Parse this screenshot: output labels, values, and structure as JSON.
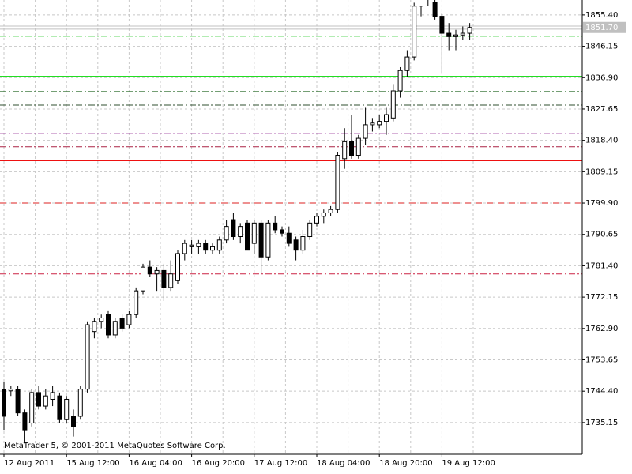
{
  "chart_data": {
    "type": "candlestick",
    "watermark": "MetaTrader 5, © 2001-2011 MetaQuotes Software Corp.",
    "categories": [
      "12 Aug 2011",
      null,
      null,
      null,
      null,
      null,
      null,
      null,
      null,
      "15 Aug 12:00",
      null,
      null,
      null,
      null,
      null,
      null,
      null,
      null,
      "16 Aug 04:00",
      null,
      null,
      null,
      null,
      null,
      null,
      null,
      null,
      "16 Aug 20:00",
      null,
      null,
      null,
      null,
      null,
      null,
      null,
      null,
      "17 Aug 12:00",
      null,
      null,
      null,
      null,
      null,
      null,
      null,
      null,
      "18 Aug 04:00",
      null,
      null,
      null,
      null,
      null,
      null,
      null,
      null,
      "18 Aug 20:00",
      null,
      null,
      null,
      null,
      null,
      null,
      null,
      null,
      "19 Aug 12:00",
      null,
      null,
      null,
      null
    ],
    "open": [
      1745,
      1744.5,
      1745,
      1738,
      1735,
      1744,
      1740,
      1742,
      1743,
      1736,
      1737,
      1737,
      1745,
      1762,
      1765,
      1767,
      1761,
      1766,
      1764,
      1767,
      1774,
      1781,
      1779,
      1780,
      1775,
      1777,
      1785,
      1787,
      1787,
      1788,
      1786,
      1786,
      1789,
      1795,
      1790,
      1794,
      1788,
      1794,
      1784,
      1794,
      1792,
      1791,
      1789,
      1786,
      1790,
      1794,
      1796,
      1797,
      1798,
      1813,
      1818,
      1814,
      1819,
      1823,
      1823,
      1824,
      1825,
      1833,
      1839,
      1843,
      1858,
      1864,
      1859,
      1855,
      1850,
      1849,
      1849.5,
      1850
    ],
    "high": [
      1747,
      1746,
      1746,
      1739,
      1745,
      1746,
      1745,
      1746,
      1744,
      1743,
      1739,
      1746,
      1765,
      1766,
      1767,
      1768,
      1766,
      1767,
      1768,
      1775,
      1782,
      1783,
      1781,
      1782,
      1783,
      1786,
      1789,
      1789,
      1789,
      1789,
      1788,
      1790,
      1795,
      1797,
      1794,
      1795,
      1795,
      1795,
      1795,
      1796,
      1793,
      1793,
      1790,
      1792,
      1795,
      1797,
      1798,
      1799,
      1815,
      1822,
      1826,
      1820,
      1828,
      1825,
      1826,
      1828,
      1835,
      1840,
      1845,
      1859,
      1866,
      1866,
      1862,
      1856,
      1853,
      1851,
      1852,
      1853
    ],
    "low": [
      1733,
      1743,
      1737,
      1729,
      1734,
      1739,
      1739,
      1740,
      1735,
      1735,
      1731,
      1736,
      1744,
      1760,
      1763,
      1760,
      1760,
      1762,
      1763,
      1766,
      1773,
      1778,
      1774,
      1771,
      1774,
      1776,
      1783,
      1785,
      1785,
      1785,
      1785,
      1785,
      1788,
      1789,
      1788,
      1786,
      1785,
      1779,
      1783,
      1791,
      1790,
      1787,
      1783,
      1785,
      1789,
      1793,
      1794,
      1796,
      1797,
      1810,
      1813,
      1813,
      1817,
      1821,
      1822,
      1820,
      1824,
      1831,
      1837,
      1842,
      1855,
      1858,
      1854,
      1838,
      1845,
      1845,
      1848,
      1848
    ],
    "close": [
      1737,
      1745,
      1738,
      1733,
      1744,
      1740,
      1743,
      1744,
      1736,
      1742,
      1734,
      1745,
      1764,
      1765,
      1766,
      1761,
      1765,
      1763,
      1767,
      1774,
      1781,
      1779,
      1780,
      1775,
      1779,
      1785,
      1788,
      1787.5,
      1788,
      1786,
      1787,
      1789,
      1793,
      1790,
      1793,
      1786,
      1794,
      1784,
      1794,
      1792,
      1791,
      1788,
      1786,
      1790,
      1794,
      1796,
      1797,
      1798,
      1814,
      1818,
      1814,
      1819,
      1823,
      1823.5,
      1824,
      1826,
      1833,
      1839,
      1843,
      1858,
      1864,
      1860,
      1855,
      1850,
      1849,
      1849.5,
      1850,
      1851.7
    ],
    "up_color": "#ffffff",
    "down_color": "#000000",
    "wick_color": "#000000",
    "levels": [
      {
        "value": 1852.1,
        "color": "#c0c0c0",
        "style": "solid"
      },
      {
        "value": 1851.2,
        "color": "#c0c0c0",
        "style": "solid"
      },
      {
        "value": 1849.1,
        "color": "#33cc33",
        "style": "dash-dot"
      },
      {
        "value": 1837.2,
        "color": "#22dd22",
        "style": "solid"
      },
      {
        "value": 1832.8,
        "color": "#226622",
        "style": "dash-dot"
      },
      {
        "value": 1828.8,
        "color": "#2f4f2f",
        "style": "dash-dot"
      },
      {
        "value": 1820.4,
        "color": "#993399",
        "style": "dash-dot"
      },
      {
        "value": 1816.5,
        "color": "#aa2244",
        "style": "dash-dot"
      },
      {
        "value": 1812.5,
        "color": "#ee1111",
        "style": "solid"
      },
      {
        "value": 1799.9,
        "color": "#dd2222",
        "style": "dashed"
      },
      {
        "value": 1779.0,
        "color": "#cc2244",
        "style": "dash-dot"
      }
    ],
    "bid": {
      "value": 1851.7,
      "label": "1851.70"
    },
    "ylim": [
      1725.8,
      1859.8
    ],
    "yticks": [
      {
        "value": 1855.4,
        "label": "1855.40"
      },
      1846.15,
      {
        "value": 1836.9,
        "label": "1836.90"
      },
      1827.65,
      {
        "value": 1818.4,
        "label": "1818.40"
      },
      1809.15,
      {
        "value": 1799.9,
        "label": "1799.90"
      },
      1790.65,
      {
        "value": 1781.4,
        "label": "1781.40"
      },
      1772.15,
      {
        "value": 1762.9,
        "label": "1762.90"
      },
      1753.65,
      {
        "value": 1744.4,
        "label": "1744.40"
      },
      1735.15
    ],
    "grid": true
  }
}
